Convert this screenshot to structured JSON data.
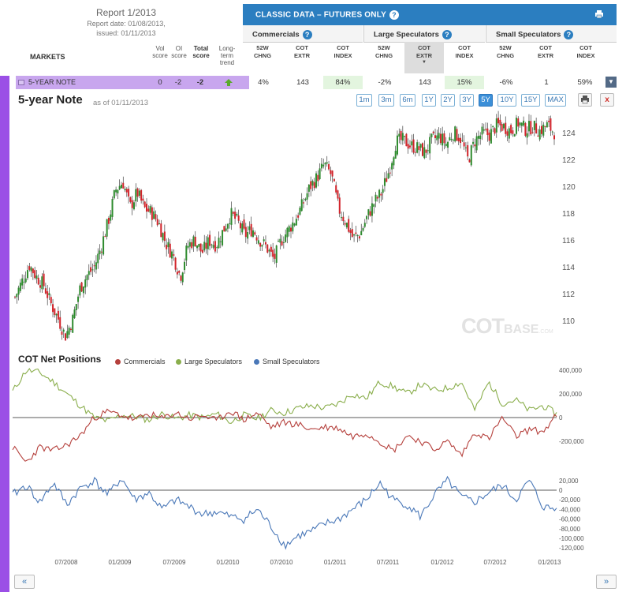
{
  "report": {
    "title": "Report 1/2013",
    "report_date": "Report date: 01/08/2013,",
    "issued": "issued: 01/11/2013"
  },
  "markets_label": "MARKETS",
  "score_headers": [
    {
      "l1": "Vol",
      "l2": "score",
      "bold": false
    },
    {
      "l1": "OI",
      "l2": "score",
      "bold": false
    },
    {
      "l1": "Total",
      "l2": "score",
      "bold": true
    },
    {
      "l1": "Long-",
      "l2": "term",
      "l3": "trend",
      "bold": false
    }
  ],
  "panel": {
    "title": "CLASSIC DATA – FUTURES ONLY",
    "groups": [
      "Commercials",
      "Large Speculators",
      "Small Speculators"
    ],
    "columns": [
      {
        "l1": "52W",
        "l2": "CHNG"
      },
      {
        "l1": "COT",
        "l2": "EXTR"
      },
      {
        "l1": "COT",
        "l2": "INDEX"
      },
      {
        "l1": "52W",
        "l2": "CHNG"
      },
      {
        "l1": "COT",
        "l2": "EXTR"
      },
      {
        "l1": "COT",
        "l2": "INDEX"
      },
      {
        "l1": "52W",
        "l2": "CHNG"
      },
      {
        "l1": "COT",
        "l2": "EXTR"
      },
      {
        "l1": "COT",
        "l2": "INDEX"
      }
    ]
  },
  "row": {
    "market": "5-YEAR NOTE",
    "vol": "0",
    "oi": "-2",
    "total": "-2",
    "trend": "up",
    "values": [
      "4%",
      "143",
      "84%",
      "-2%",
      "143",
      "15%",
      "-6%",
      "1",
      "59%"
    ]
  },
  "chart_header": {
    "title": "5-year Note",
    "as_of": "as of 01/11/2013",
    "ranges": [
      "1m",
      "3m",
      "6m",
      "1Y",
      "2Y",
      "3Y",
      "5Y",
      "10Y",
      "15Y",
      "MAX"
    ],
    "active_range": "5Y"
  },
  "watermark": {
    "cot": "COT",
    "base": "BASE",
    "dom": ".COM"
  },
  "cot_section": {
    "title": "COT Net Positions",
    "legend": [
      {
        "name": "Commercials",
        "color": "#b5403c"
      },
      {
        "name": "Large Speculators",
        "color": "#8aae4c"
      },
      {
        "name": "Small Speculators",
        "color": "#4a78b8"
      }
    ]
  },
  "colors": {
    "up_candle": "#2e8b2e",
    "down_candle": "#d1232a",
    "commercials": "#b5403c",
    "large_spec": "#8aae4c",
    "small_spec": "#4a78b8",
    "accent": "#2b7ec0",
    "sidebar": "#9b4fe6"
  },
  "chart_data": [
    {
      "type": "candlestick",
      "title": "5-year Note",
      "x_ticks": [
        "07/2008",
        "01/2009",
        "07/2009",
        "01/2010",
        "07/2010",
        "01/2011",
        "07/2011",
        "01/2012",
        "07/2012",
        "01/2013"
      ],
      "y_ticks": [
        110,
        112,
        114,
        116,
        118,
        120,
        122,
        124
      ],
      "ylim": [
        108.3,
        125.6
      ],
      "closing_path_biweekly": [
        111.8,
        113.0,
        114.2,
        113.3,
        112.7,
        111.3,
        110.2,
        108.9,
        110.1,
        112.4,
        113.4,
        114.0,
        115.6,
        117.5,
        119.8,
        120.4,
        118.5,
        119.6,
        118.4,
        118.1,
        117.3,
        115.8,
        114.9,
        113.3,
        115.6,
        116.1,
        115.1,
        116.0,
        115.7,
        116.8,
        118.0,
        117.4,
        116.4,
        116.9,
        116.1,
        115.5,
        114.6,
        116.0,
        116.8,
        117.6,
        118.7,
        120.0,
        120.7,
        121.7,
        120.9,
        118.4,
        117.4,
        116.2,
        116.5,
        117.8,
        118.9,
        119.6,
        121.2,
        123.4,
        123.5,
        123.1,
        122.9,
        122.6,
        123.5,
        123.8,
        123.2,
        124.1,
        123.6,
        122.0,
        123.5,
        124.0,
        123.9,
        124.6,
        124.5,
        124.2,
        124.8,
        124.3,
        124.5,
        124.2,
        124.6,
        124.1
      ]
    },
    {
      "type": "line",
      "title": "COT Net Positions",
      "series": [
        {
          "name": "Commercials",
          "values": [
            -250000,
            -380000,
            -250000,
            -280000,
            -230000,
            -150000,
            0,
            50000,
            20000,
            -20000,
            30000,
            -10000,
            40000,
            -10000,
            20000,
            -30000,
            60000,
            -20000,
            40000,
            -80000,
            -40000,
            -60000,
            -100000,
            -80000,
            -90000,
            -160000,
            -130000,
            -200000,
            -280000,
            -150000,
            -200000,
            -270000,
            -200000,
            -320000,
            -120000,
            -180000,
            0,
            -160000,
            -100000,
            -120000,
            20000
          ]
        },
        {
          "name": "Large Speculators",
          "values": [
            220000,
            400000,
            380000,
            300000,
            200000,
            100000,
            0,
            -30000,
            20000,
            10000,
            -20000,
            30000,
            -10000,
            20000,
            0,
            30000,
            -40000,
            20000,
            -10000,
            60000,
            40000,
            80000,
            100000,
            80000,
            120000,
            200000,
            160000,
            300000,
            260000,
            200000,
            280000,
            230000,
            250000,
            300000,
            60000,
            300000,
            120000,
            150000,
            60000,
            100000,
            30000
          ]
        },
        {
          "name": "Small Speculators",
          "values": [
            -10000,
            10000,
            -25000,
            15000,
            -30000,
            5000,
            20000,
            -10000,
            25000,
            -20000,
            -5000,
            -40000,
            -20000,
            -35000,
            -50000,
            -45000,
            -55000,
            -60000,
            -40000,
            -75000,
            -115000,
            -95000,
            -85000,
            -70000,
            -60000,
            -40000,
            -20000,
            15000,
            -20000,
            -30000,
            -55000,
            -10000,
            20000,
            -15000,
            -25000,
            -5000,
            10000,
            -20000,
            20000,
            -35000,
            -40000
          ]
        }
      ],
      "yticks_top": [
        "400,000",
        "200,000",
        "0",
        "-200,000"
      ],
      "yticks_bottom": [
        "20,000",
        "0",
        "-20,000",
        "-40,000",
        "-60,000",
        "-80,000",
        "-100,000",
        "-120,000"
      ]
    }
  ]
}
